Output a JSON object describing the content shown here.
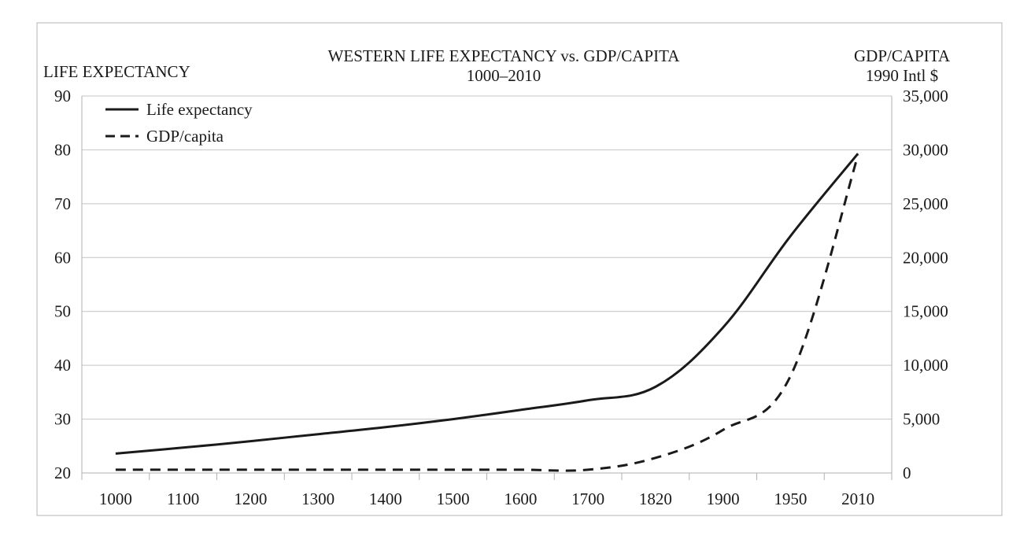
{
  "chart_data": {
    "type": "line",
    "title": "WESTERN LIFE EXPECTANCY vs. GDP/CAPITA",
    "subtitle": "1000–2010",
    "ylabel_left": "LIFE EXPECTANCY",
    "ylabel_right": "GDP/CAPITA",
    "ylabel_right_unit": "1990 Intl $",
    "categories": [
      "1000",
      "1100",
      "1200",
      "1300",
      "1400",
      "1500",
      "1600",
      "1700",
      "1820",
      "1900",
      "1950",
      "2010"
    ],
    "y_left": {
      "min": 20,
      "max": 90,
      "ticks": [
        "20",
        "30",
        "40",
        "50",
        "60",
        "70",
        "80",
        "90"
      ]
    },
    "y_right": {
      "min": 0,
      "max": 35000,
      "ticks": [
        "0",
        "5,000",
        "10,000",
        "15,000",
        "20,000",
        "25,000",
        "30,000",
        "35,000"
      ]
    },
    "grid": true,
    "legend_position": "top-left",
    "series": [
      {
        "name": "Life expectancy",
        "axis": "left",
        "style": "solid",
        "color": "#1a1a1a",
        "values": [
          23.6,
          24.7,
          25.9,
          27.2,
          28.5,
          30.0,
          31.7,
          33.5,
          36.0,
          47.0,
          64.0,
          79.3
        ]
      },
      {
        "name": "GDP/capita",
        "axis": "right",
        "style": "dashed",
        "color": "#1a1a1a",
        "values": [
          300,
          300,
          300,
          300,
          300,
          300,
          300,
          300,
          1400,
          4000,
          9000,
          29500
        ]
      }
    ]
  }
}
